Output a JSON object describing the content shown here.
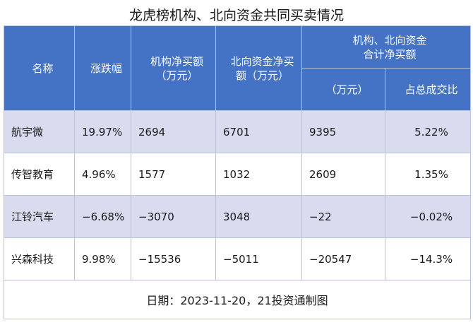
{
  "title": "龙虎榜机构、北向资金共同买卖情况",
  "headers": {
    "name": "名称",
    "change": "涨跌幅",
    "inst": [
      "机构净买额",
      "（万元）"
    ],
    "north": [
      "北向资金净买",
      "额（万元）"
    ],
    "combined": [
      "机构、北向资金",
      "合计净买额"
    ],
    "combined_unit": "（万元）",
    "share": "占总成交比"
  },
  "chart_data": {
    "type": "table",
    "title": "龙虎榜机构、北向资金共同买卖情况",
    "columns": [
      "名称",
      "涨跌幅",
      "机构净买额（万元）",
      "北向资金净买额（万元）",
      "机构、北向资金合计净买额（万元）",
      "占总成交比"
    ],
    "rows": [
      {
        "name": "航宇微",
        "change": "19.97%",
        "inst": "2694",
        "north": "6701",
        "combined": "9395",
        "share": "5.22%"
      },
      {
        "name": "传智教育",
        "change": "4.96%",
        "inst": "1577",
        "north": "1032",
        "combined": "2609",
        "share": "1.35%"
      },
      {
        "name": "江铃汽车",
        "change": "−6.68%",
        "inst": "−3070",
        "north": "3048",
        "combined": "−22",
        "share": "−0.02%"
      },
      {
        "name": "兴森科技",
        "change": "9.98%",
        "inst": "−15536",
        "north": "−5011",
        "combined": "−20547",
        "share": "−14.3%"
      }
    ]
  },
  "footer": "日期：2023-11-20，21投资通制图",
  "colors": {
    "header_bg": "#4472c4",
    "row_shaded": "#d9dcef",
    "row_plain": "#ffffff"
  }
}
